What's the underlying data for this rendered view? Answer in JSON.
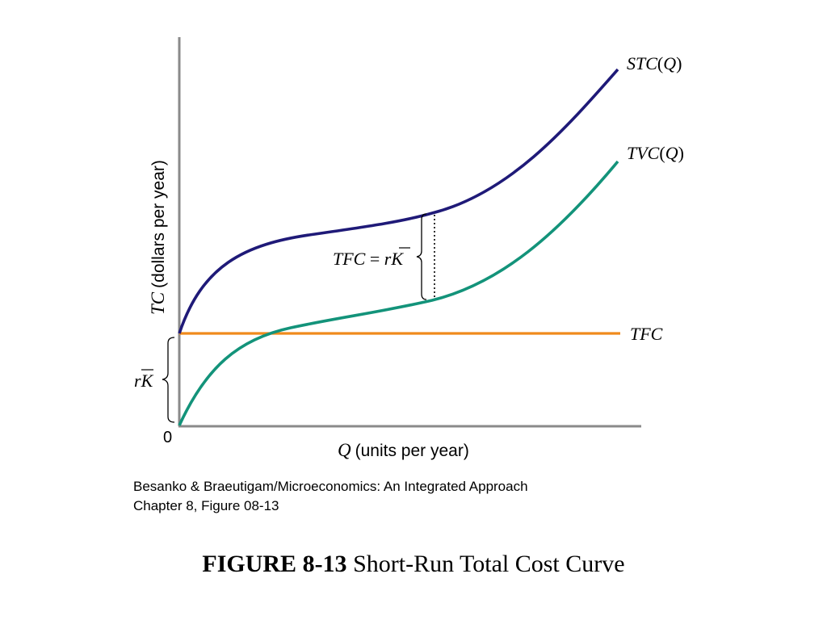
{
  "chart_data": {
    "type": "line",
    "xlabel": {
      "symbol": "Q",
      "text": "(units per year)"
    },
    "ylabel": {
      "symbol": "TC",
      "text": "(dollars per year)"
    },
    "origin_label": "0",
    "axis_ticks_shown": false,
    "grid": false,
    "series": [
      {
        "name": "STC(Q)",
        "color": "#1f1a78",
        "label_parts": [
          "STC",
          "(",
          "Q",
          ")"
        ]
      },
      {
        "name": "TVC(Q)",
        "color": "#13937a",
        "label_parts": [
          "TVC",
          "(",
          "Q",
          ")"
        ]
      },
      {
        "name": "TFC",
        "color": "#f08a1c",
        "label_parts": [
          "TFC"
        ]
      }
    ],
    "annotations": {
      "gap_label": {
        "left": "TFC",
        "eq": " = ",
        "r": "r",
        "k": "K"
      },
      "intercept_label": {
        "r": "r",
        "k": "K"
      }
    }
  },
  "caption": {
    "line1": "Besanko & Braeutigam/Microeconomics: An Integrated Approach",
    "line2": "Chapter 8, Figure 08-13"
  },
  "figure_title": {
    "number": "FIGURE 8-13",
    "text": " Short-Run Total Cost Curve"
  }
}
